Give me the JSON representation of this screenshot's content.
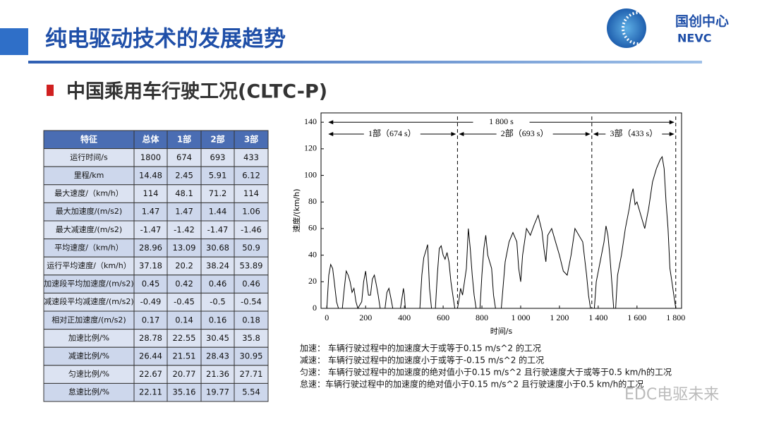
{
  "header": {
    "title": "纯电驱动技术的发展趋势",
    "logo_cn": "国创中心",
    "logo_en": "NEVC"
  },
  "subtitle": "中国乘用车行驶工况(CLTC-P)",
  "table": {
    "columns": [
      "特征",
      "总体",
      "1部",
      "2部",
      "3部"
    ],
    "rows": [
      [
        "运行时间/s",
        "1800",
        "674",
        "693",
        "433"
      ],
      [
        "里程/km",
        "14.48",
        "2.45",
        "5.91",
        "6.12"
      ],
      [
        "最大速度/（km/h）",
        "114",
        "48.1",
        "71.2",
        "114"
      ],
      [
        "最大加速度/(m/s2)",
        "1.47",
        "1.47",
        "1.44",
        "1.06"
      ],
      [
        "最大减速度/(m/s2)",
        "-1.47",
        "-1.42",
        "-1.47",
        "-1.46"
      ],
      [
        "平均速度/（km/h）",
        "28.96",
        "13.09",
        "30.68",
        "50.9"
      ],
      [
        "运行平均速度/（km/h）",
        "37.18",
        "20.2",
        "38.24",
        "53.89"
      ],
      [
        "加速段平均加速度/(m/s2)",
        "0.45",
        "0.42",
        "0.46",
        "0.46"
      ],
      [
        "减速段平均减速度/(m/s2)",
        "-0.49",
        "-0.45",
        "-0.5",
        "-0.54"
      ],
      [
        "相对正加速度/(m/s2)",
        "0.17",
        "0.14",
        "0.16",
        "0.18"
      ],
      [
        "加速比例/%",
        "28.78",
        "22.55",
        "30.45",
        "35.8"
      ],
      [
        "减速比例/%",
        "26.44",
        "21.51",
        "28.43",
        "30.95"
      ],
      [
        "匀速比例/%",
        "22.67",
        "20.77",
        "21.36",
        "27.71"
      ],
      [
        "怠速比例/%",
        "22.11",
        "35.16",
        "19.77",
        "5.54"
      ]
    ]
  },
  "chart_data": {
    "type": "line",
    "x_label": "时间/s",
    "y_label": "速度/(km/h)",
    "color": "#000000",
    "xlim": [
      -30,
      1830
    ],
    "ylim": [
      0,
      147
    ],
    "xticks": [
      0,
      200,
      400,
      600,
      800,
      {
        "value": 1000,
        "label": "1 000"
      },
      {
        "value": 1200,
        "label": "1 200"
      },
      {
        "value": 1400,
        "label": "1 400"
      },
      {
        "value": 1600,
        "label": "1 600"
      },
      {
        "value": 1800,
        "label": "1 800"
      }
    ],
    "yticks": [
      0,
      20,
      40,
      60,
      80,
      100,
      120,
      140
    ],
    "dividers": [
      674,
      1367,
      1800
    ],
    "annotations": [
      "1 800 s",
      "1部（674 s）",
      "2部（693 s）",
      "3部（433 s）"
    ],
    "x": [
      0,
      10,
      20,
      30,
      40,
      50,
      60,
      80,
      90,
      100,
      110,
      120,
      130,
      140,
      150,
      160,
      180,
      190,
      200,
      210,
      215,
      225,
      235,
      245,
      255,
      265,
      275,
      300,
      310,
      320,
      330,
      340,
      380,
      390,
      395,
      400,
      405,
      480,
      490,
      500,
      510,
      520,
      525,
      530,
      540,
      560,
      570,
      580,
      590,
      600,
      610,
      620,
      630,
      640,
      650,
      660,
      674,
      680,
      690,
      700,
      720,
      730,
      740,
      750,
      760,
      770,
      790,
      800,
      810,
      820,
      830,
      850,
      860,
      870,
      900,
      920,
      940,
      960,
      980,
      990,
      1000,
      1010,
      1030,
      1050,
      1070,
      1090,
      1110,
      1120,
      1130,
      1140,
      1160,
      1180,
      1200,
      1220,
      1240,
      1260,
      1280,
      1300,
      1320,
      1340,
      1350,
      1360,
      1367,
      1380,
      1390,
      1410,
      1430,
      1440,
      1450,
      1460,
      1470,
      1480,
      1490,
      1500,
      1520,
      1540,
      1560,
      1570,
      1580,
      1590,
      1600,
      1620,
      1640,
      1660,
      1680,
      1700,
      1720,
      1730,
      1740,
      1750,
      1760,
      1770,
      1780,
      1790,
      1800
    ],
    "values": [
      0,
      25,
      33,
      30,
      18,
      5,
      0,
      0,
      15,
      28,
      25,
      20,
      12,
      15,
      5,
      0,
      5,
      20,
      28,
      15,
      10,
      10,
      22,
      25,
      18,
      10,
      0,
      0,
      12,
      15,
      8,
      0,
      0,
      10,
      15,
      10,
      0,
      0,
      25,
      38,
      43,
      48,
      30,
      15,
      0,
      0,
      25,
      45,
      47,
      40,
      37,
      42,
      35,
      20,
      10,
      0,
      0,
      5,
      15,
      10,
      30,
      60,
      45,
      25,
      10,
      0,
      0,
      25,
      45,
      55,
      40,
      30,
      10,
      0,
      0,
      35,
      50,
      57,
      50,
      30,
      20,
      40,
      60,
      55,
      63,
      70,
      58,
      45,
      35,
      55,
      60,
      50,
      40,
      28,
      25,
      40,
      60,
      55,
      50,
      25,
      10,
      0,
      0,
      0,
      20,
      35,
      50,
      62,
      55,
      40,
      20,
      0,
      0,
      25,
      40,
      60,
      75,
      85,
      90,
      78,
      80,
      70,
      60,
      75,
      95,
      105,
      112,
      114,
      105,
      80,
      60,
      30,
      20,
      10,
      0
    ]
  },
  "notes": [
    "加速：  车辆行驶过程中的加速度大于或等于0.15 m/s^2 的工况",
    "减速：  车辆行驶过程中的加速度小于或等于-0.15 m/s^2 的工况",
    "匀速：  车辆行驶过程中的加速度的绝对值小于0.15 m/s^2 且行驶速度大于或等于0.5 km/h的工况",
    "怠速：车辆行驶过程中的加速度的绝对值小于0.15 m/s^2 且行驶速度小于0.5 km/h的工况"
  ],
  "watermark": "EDC电驱未来"
}
